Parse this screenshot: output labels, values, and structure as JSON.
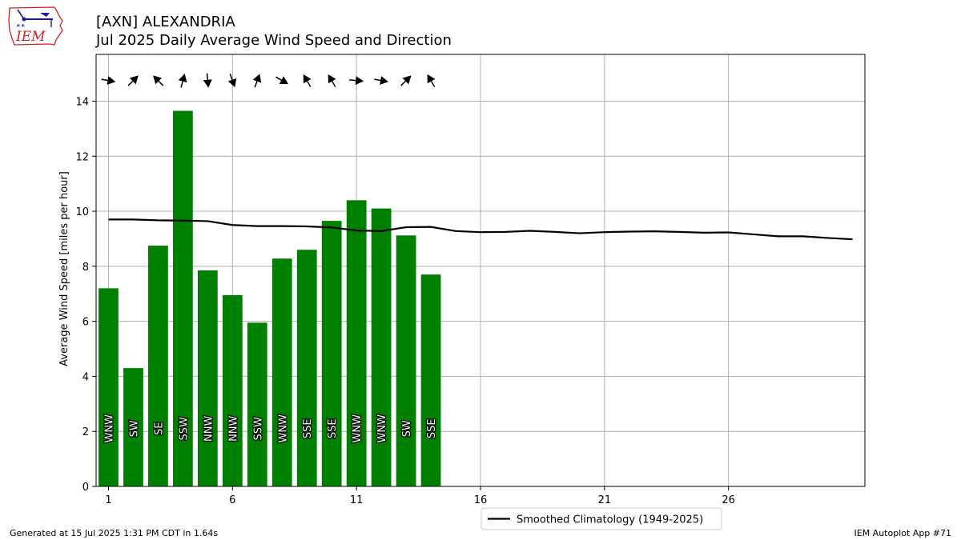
{
  "header": {
    "title_line1": "[AXN] ALEXANDRIA",
    "title_line2": "Jul 2025 Daily Average Wind Speed and Direction"
  },
  "logo": {
    "text": "IEM"
  },
  "footer": {
    "generated": "Generated at 15 Jul 2025 1:31 PM CDT in 1.64s",
    "app": "IEM Autoplot App #71"
  },
  "colors": {
    "bar": "#008000",
    "climo": "#000000",
    "grid": "#b0b0b0",
    "logo_red": "#cc2222",
    "logo_blue": "#1a1aa0"
  },
  "chart_data": {
    "type": "bar",
    "ylabel": "Average Wind Speed [miles per hour]",
    "xlabel": "",
    "xlim": [
      0.5,
      31.5
    ],
    "ylim": [
      0,
      15.7
    ],
    "xticks": [
      1,
      6,
      11,
      16,
      21,
      26
    ],
    "yticks": [
      0,
      2,
      4,
      6,
      8,
      10,
      12,
      14
    ],
    "grid": true,
    "legend": {
      "placement": "below-center",
      "entries": [
        "Smoothed Climatology (1949-2025)"
      ]
    },
    "bars": {
      "days": [
        1,
        2,
        3,
        4,
        5,
        6,
        7,
        8,
        9,
        10,
        11,
        12,
        13,
        14
      ],
      "values": [
        7.2,
        4.3,
        8.75,
        13.65,
        7.85,
        6.95,
        5.95,
        8.28,
        8.6,
        9.65,
        10.4,
        10.1,
        9.12,
        7.7
      ],
      "directions": [
        "WNW",
        "SW",
        "SE",
        "SSW",
        "NNW",
        "NNW",
        "SSW",
        "WNW",
        "SSE",
        "SSE",
        "WNW",
        "WNW",
        "SW",
        "SSE"
      ]
    },
    "climatology": {
      "name": "Smoothed Climatology (1949-2025)",
      "x": [
        1,
        2,
        3,
        4,
        5,
        6,
        7,
        8,
        9,
        10,
        11,
        12,
        13,
        14,
        15,
        16,
        17,
        18,
        19,
        20,
        21,
        22,
        23,
        24,
        25,
        26,
        27,
        28,
        29,
        30,
        31
      ],
      "y": [
        9.7,
        9.7,
        9.67,
        9.66,
        9.64,
        9.5,
        9.46,
        9.46,
        9.45,
        9.41,
        9.3,
        9.28,
        9.42,
        9.43,
        9.28,
        9.24,
        9.25,
        9.29,
        9.25,
        9.2,
        9.24,
        9.26,
        9.27,
        9.25,
        9.22,
        9.23,
        9.16,
        9.09,
        9.09,
        9.03,
        8.98
      ]
    },
    "arrows": {
      "y_value": 14.75,
      "note_unit": "degrees",
      "headings": [
        100,
        45,
        315,
        15,
        175,
        160,
        20,
        120,
        330,
        330,
        95,
        100,
        45,
        330
      ]
    }
  }
}
